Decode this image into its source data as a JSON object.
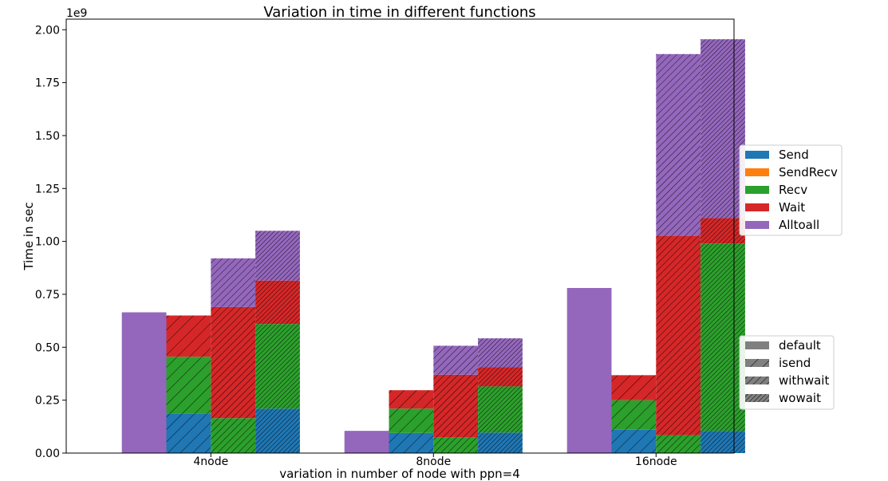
{
  "chart_data": {
    "type": "bar",
    "title": "Variation in time in different functions",
    "xlabel": "variation in number of node with ppn=4",
    "ylabel": "Time in sec",
    "y_scale_label": "1e9",
    "ylim": [
      0,
      2.05
    ],
    "yticks": [
      "0.00",
      "0.25",
      "0.50",
      "0.75",
      "1.00",
      "1.25",
      "1.50",
      "1.75",
      "2.00"
    ],
    "categories": [
      "4node",
      "8node",
      "16node"
    ],
    "stack_order": [
      "Send",
      "SendRecv",
      "Recv",
      "Wait",
      "Alltoall"
    ],
    "functions": [
      {
        "name": "Send",
        "color": "#1f77b4"
      },
      {
        "name": "SendRecv",
        "color": "#ff7f0e"
      },
      {
        "name": "Recv",
        "color": "#2ca02c"
      },
      {
        "name": "Wait",
        "color": "#d62728"
      },
      {
        "name": "Alltoall",
        "color": "#9467bd"
      }
    ],
    "variants": [
      {
        "name": "default",
        "hatch": "none"
      },
      {
        "name": "isend",
        "hatch": "sparse"
      },
      {
        "name": "withwait",
        "hatch": "medium"
      },
      {
        "name": "wowait",
        "hatch": "dense"
      }
    ],
    "grid": false,
    "legend_functions_position": "right",
    "legend_variants_position": "lower-right",
    "values": {
      "4node": {
        "default": {
          "Send": 0,
          "SendRecv": 0,
          "Recv": 0,
          "Wait": 0,
          "Alltoall": 0.665
        },
        "isend": {
          "Send": 0.185,
          "SendRecv": 0,
          "Recv": 0.27,
          "Wait": 0.195,
          "Alltoall": 0
        },
        "withwait": {
          "Send": 0,
          "SendRecv": 0,
          "Recv": 0.165,
          "Wait": 0.525,
          "Alltoall": 0.23
        },
        "wowait": {
          "Send": 0.21,
          "SendRecv": 0,
          "Recv": 0.4,
          "Wait": 0.205,
          "Alltoall": 0.235
        }
      },
      "8node": {
        "default": {
          "Send": 0,
          "SendRecv": 0,
          "Recv": 0,
          "Wait": 0,
          "Alltoall": 0.105
        },
        "isend": {
          "Send": 0.095,
          "SendRecv": 0,
          "Recv": 0.115,
          "Wait": 0.087,
          "Alltoall": 0
        },
        "withwait": {
          "Send": 0,
          "SendRecv": 0,
          "Recv": 0.075,
          "Wait": 0.295,
          "Alltoall": 0.137
        },
        "wowait": {
          "Send": 0.097,
          "SendRecv": 0,
          "Recv": 0.218,
          "Wait": 0.09,
          "Alltoall": 0.137
        }
      },
      "16node": {
        "default": {
          "Send": 0,
          "SendRecv": 0,
          "Recv": 0,
          "Wait": 0,
          "Alltoall": 0.78
        },
        "isend": {
          "Send": 0.11,
          "SendRecv": 0,
          "Recv": 0.14,
          "Wait": 0.118,
          "Alltoall": 0
        },
        "withwait": {
          "Send": 0,
          "SendRecv": 0,
          "Recv": 0.085,
          "Wait": 0.94,
          "Alltoall": 0.86
        },
        "wowait": {
          "Send": 0.105,
          "SendRecv": 0,
          "Recv": 0.885,
          "Wait": 0.12,
          "Alltoall": 0.845
        }
      }
    }
  }
}
